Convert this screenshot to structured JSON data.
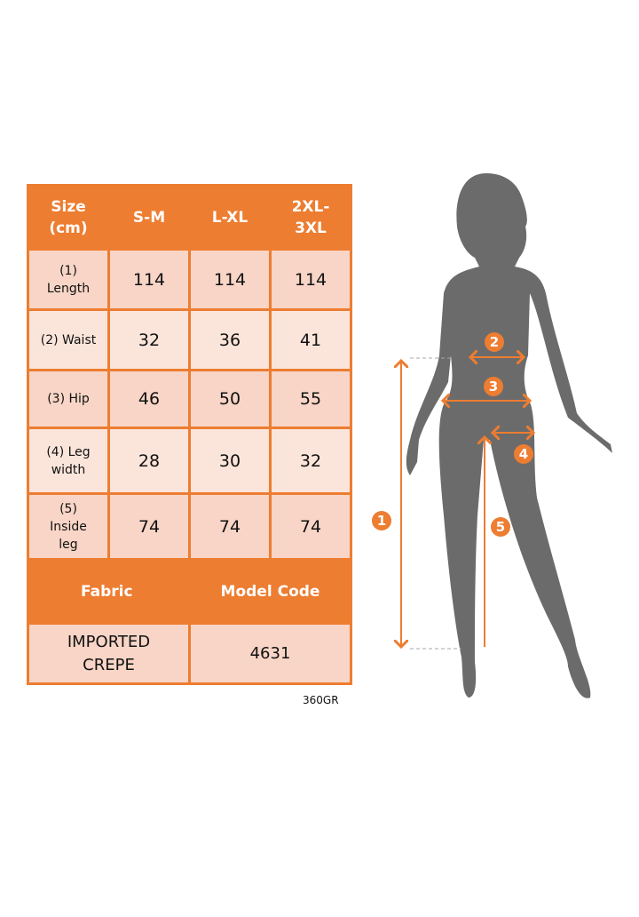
{
  "table": {
    "header": [
      "Size (cm)",
      "S-M",
      "L-XL",
      "2XL-3XL"
    ],
    "rows": [
      {
        "label": "(1) Length",
        "values": [
          "114",
          "114",
          "114"
        ]
      },
      {
        "label": "(2) Waist",
        "values": [
          "32",
          "36",
          "41"
        ]
      },
      {
        "label": "(3) Hip",
        "values": [
          "46",
          "50",
          "55"
        ]
      },
      {
        "label": "(4) Leg width",
        "values": [
          "28",
          "30",
          "32"
        ]
      },
      {
        "label": "(5) Inside leg",
        "values": [
          "74",
          "74",
          "74"
        ]
      }
    ],
    "info_header": [
      "Fabric",
      "Model Code"
    ],
    "info_values": [
      "IMPORTED CREPE",
      "4631"
    ]
  },
  "code_label": "360GR",
  "markers": [
    "1",
    "2",
    "3",
    "4",
    "5"
  ],
  "colors": {
    "accent": "#ED7D31",
    "row_dark": "#F8D5C6",
    "row_light": "#FBE5DB",
    "silhouette": "#6B6B6B"
  }
}
